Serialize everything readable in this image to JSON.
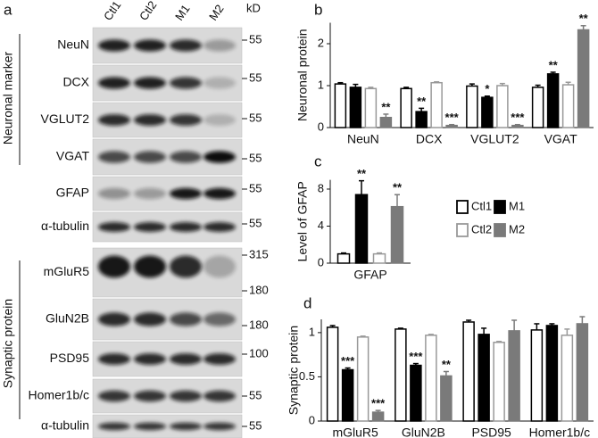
{
  "blot": {
    "panel": "a",
    "unit": "kD",
    "lanes": [
      "Ctl1",
      "Ctl2",
      "M1",
      "M2"
    ],
    "groups": [
      "Neuronal marker",
      "Synaptic protein"
    ],
    "rows": [
      {
        "label": "NeuN",
        "markers": [
          55
        ]
      },
      {
        "label": "DCX",
        "markers": [
          55
        ]
      },
      {
        "label": "VGLUT2",
        "markers": [
          55
        ]
      },
      {
        "label": "VGAT",
        "markers": [
          55
        ]
      },
      {
        "label": "GFAP",
        "markers": [
          55
        ]
      },
      {
        "label": "α-tubulin",
        "markers": [
          55
        ]
      },
      {
        "label": "mGluR5",
        "markers": [
          315,
          180
        ]
      },
      {
        "label": "GluN2B",
        "markers": [
          180
        ]
      },
      {
        "label": "PSD95",
        "markers": [
          100
        ]
      },
      {
        "label": "Homer1b/c",
        "markers": [
          55
        ]
      },
      {
        "label": "α-tubulin",
        "markers": [
          55
        ]
      }
    ]
  },
  "chart_data": [
    {
      "type": "bar",
      "panel": "b",
      "ylabel": "Neuronal protein",
      "categories": [
        "NeuN",
        "DCX",
        "VGLUT2",
        "VGAT"
      ],
      "ylim": [
        0,
        2.5
      ],
      "yticks": [
        0,
        1,
        2
      ],
      "series": [
        {
          "name": "Ctl1",
          "color": "#ffffff",
          "edgecolor": "#000000",
          "values": [
            1.04,
            0.93,
            0.99,
            0.96
          ],
          "errors": [
            0.03,
            0.03,
            0.05,
            0.05
          ]
        },
        {
          "name": "M1",
          "color": "#000000",
          "edgecolor": "#000000",
          "values": [
            0.96,
            0.38,
            0.72,
            1.28
          ],
          "errors": [
            0.07,
            0.08,
            0.03,
            0.04
          ],
          "annotations": [
            null,
            "**",
            "*",
            "**"
          ]
        },
        {
          "name": "Ctl2",
          "color": "#ffffff",
          "edgecolor": "#999999",
          "values": [
            0.93,
            1.07,
            1.0,
            1.02
          ],
          "errors": [
            0.03,
            0.02,
            0.05,
            0.06
          ]
        },
        {
          "name": "M2",
          "color": "#7a7a7a",
          "edgecolor": "#7a7a7a",
          "values": [
            0.24,
            0.05,
            0.05,
            2.33
          ],
          "errors": [
            0.08,
            0.02,
            0.02,
            0.1
          ],
          "annotations": [
            "**",
            "***",
            "***",
            "**"
          ]
        }
      ]
    },
    {
      "type": "bar",
      "panel": "c",
      "ylabel": "Level of GFAP",
      "categories": [
        "GFAP"
      ],
      "ylim": [
        0,
        9
      ],
      "yticks": [
        0,
        4,
        8
      ],
      "series": [
        {
          "name": "Ctl1",
          "color": "#ffffff",
          "edgecolor": "#000000",
          "values": [
            1.0
          ],
          "errors": [
            0.1
          ]
        },
        {
          "name": "M1",
          "color": "#000000",
          "edgecolor": "#000000",
          "values": [
            7.4
          ],
          "errors": [
            1.5
          ],
          "annotations": [
            "**"
          ]
        },
        {
          "name": "Ctl2",
          "color": "#ffffff",
          "edgecolor": "#999999",
          "values": [
            1.0
          ],
          "errors": [
            0.1
          ]
        },
        {
          "name": "M2",
          "color": "#7a7a7a",
          "edgecolor": "#7a7a7a",
          "values": [
            6.1
          ],
          "errors": [
            1.3
          ],
          "annotations": [
            "**"
          ]
        }
      ]
    },
    {
      "type": "bar",
      "panel": "d",
      "ylabel": "Synaptic protein",
      "categories": [
        "mGluR5",
        "GluN2B",
        "PSD95",
        "Homer1b/c"
      ],
      "ylim": [
        0,
        1.15
      ],
      "yticks": [
        0,
        0.5,
        1
      ],
      "series": [
        {
          "name": "Ctl1",
          "color": "#ffffff",
          "edgecolor": "#000000",
          "values": [
            1.06,
            1.04,
            1.12,
            1.03
          ],
          "errors": [
            0.02,
            0.01,
            0.02,
            0.07
          ]
        },
        {
          "name": "M1",
          "color": "#000000",
          "edgecolor": "#000000",
          "values": [
            0.58,
            0.63,
            0.98,
            1.08
          ],
          "errors": [
            0.02,
            0.02,
            0.07,
            0.02
          ],
          "annotations": [
            "***",
            "***",
            null,
            null
          ]
        },
        {
          "name": "Ctl2",
          "color": "#ffffff",
          "edgecolor": "#999999",
          "values": [
            0.95,
            0.97,
            0.89,
            0.97
          ],
          "errors": [
            0.01,
            0.01,
            0.01,
            0.07
          ]
        },
        {
          "name": "M2",
          "color": "#7a7a7a",
          "edgecolor": "#7a7a7a",
          "values": [
            0.1,
            0.51,
            1.02,
            1.1
          ],
          "errors": [
            0.02,
            0.05,
            0.12,
            0.08
          ],
          "annotations": [
            "***",
            "**",
            null,
            null
          ]
        }
      ]
    }
  ]
}
